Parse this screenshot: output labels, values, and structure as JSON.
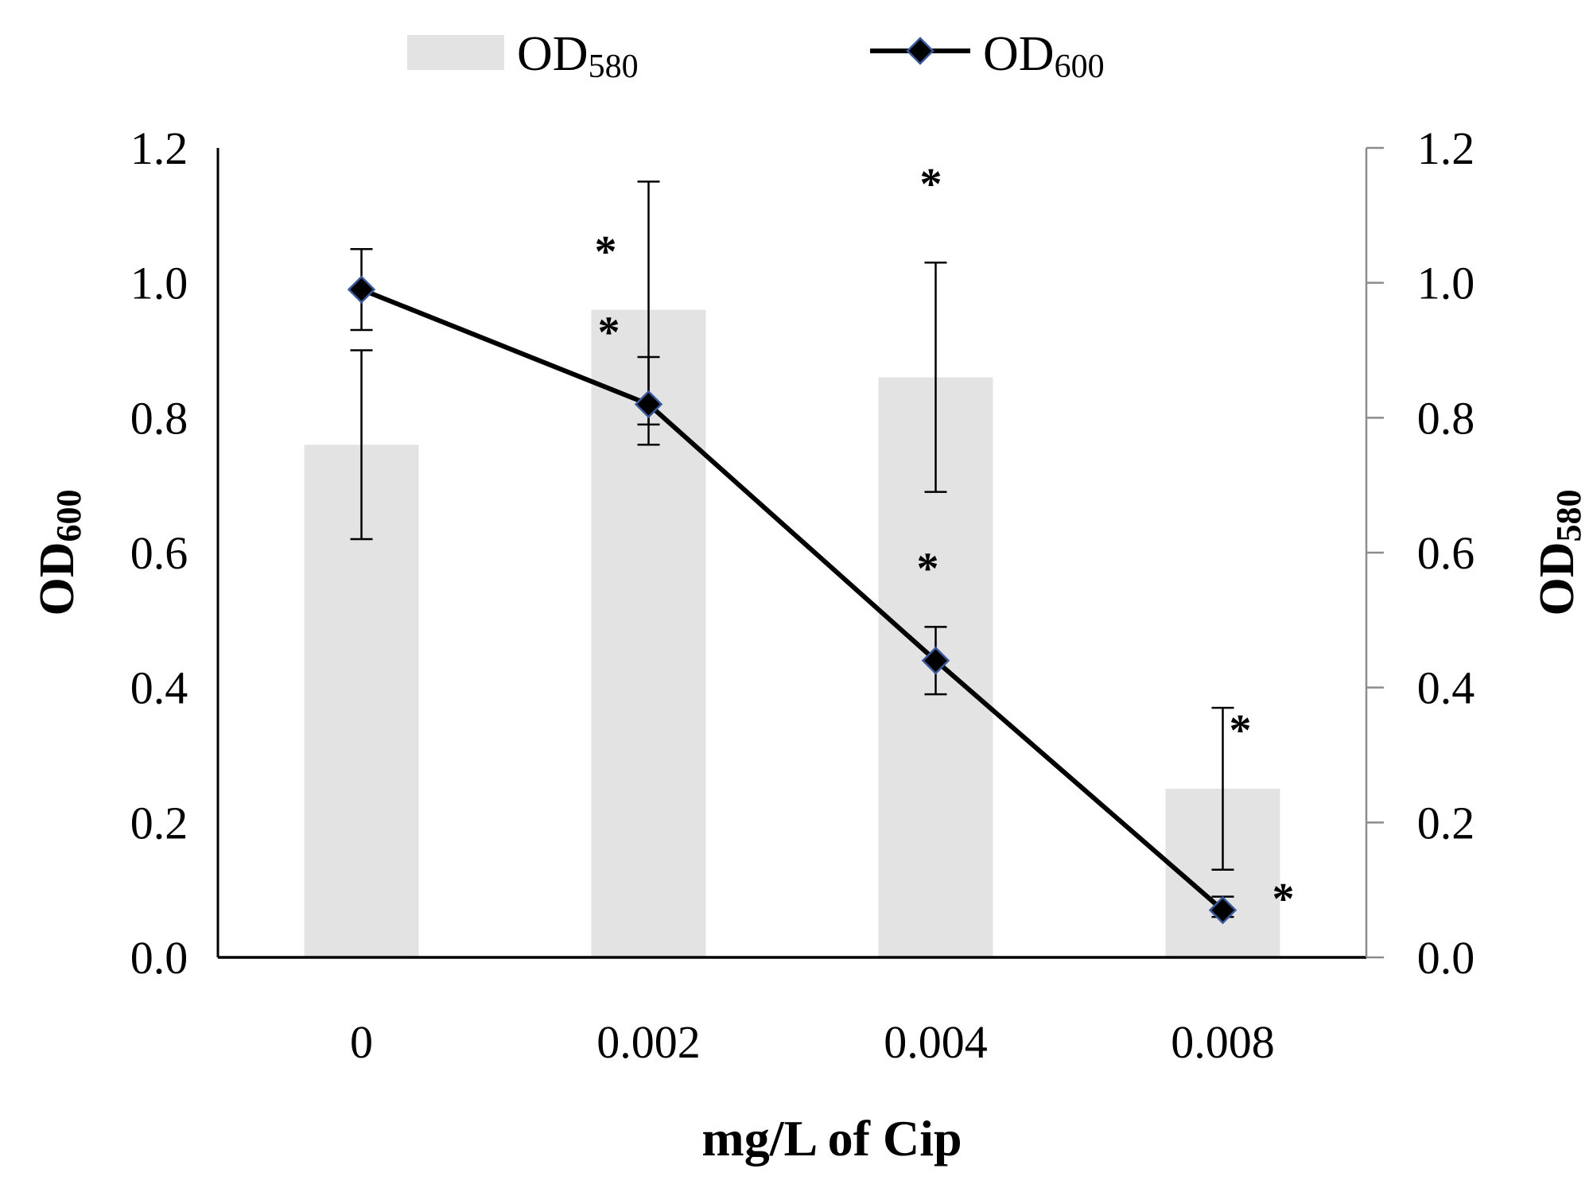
{
  "chart_data": {
    "type": "bar",
    "categories": [
      "0",
      "0.002",
      "0.004",
      "0.008"
    ],
    "xlabel": "mg/L of Cip",
    "ylabel_left": {
      "base": "OD",
      "sub": "600"
    },
    "ylabel_right": {
      "base": "OD",
      "sub": "580"
    },
    "ylim": [
      0,
      1.2
    ],
    "yticks": [
      "0.0",
      "0.2",
      "0.4",
      "0.6",
      "0.8",
      "1.0",
      "1.2"
    ],
    "ytick_values": [
      0,
      0.2,
      0.4,
      0.6,
      0.8,
      1.0,
      1.2
    ],
    "legend": {
      "position": "top",
      "bar_label": {
        "base": "OD",
        "sub": "580"
      },
      "line_label": {
        "base": "OD",
        "sub": "600"
      }
    },
    "series": [
      {
        "name": "OD580",
        "type": "bar",
        "axis": "right",
        "color": "#e3e3e3",
        "values": [
          0.76,
          0.96,
          0.86,
          0.25
        ],
        "error_low": [
          0.62,
          0.76,
          0.69,
          0.13
        ],
        "error_high": [
          0.9,
          1.15,
          1.03,
          0.37
        ]
      },
      {
        "name": "OD600",
        "type": "line",
        "axis": "left",
        "color": "#000000",
        "marker_edge": "#3a5a9c",
        "values": [
          0.99,
          0.82,
          0.44,
          0.07
        ],
        "error_low": [
          0.93,
          0.79,
          0.39,
          0.06
        ],
        "error_high": [
          1.05,
          0.89,
          0.49,
          0.09
        ]
      }
    ],
    "annotations": [
      {
        "text": "*",
        "category": 1,
        "value": 1.06
      },
      {
        "text": "*",
        "category": 1,
        "value": 0.94
      },
      {
        "text": "*",
        "category": 2,
        "value": 1.16
      },
      {
        "text": "*",
        "category": 2,
        "value": 0.59
      },
      {
        "text": "*",
        "category": 3,
        "value": 0.35
      },
      {
        "text": "*",
        "category": 3,
        "value": 0.1
      }
    ]
  }
}
